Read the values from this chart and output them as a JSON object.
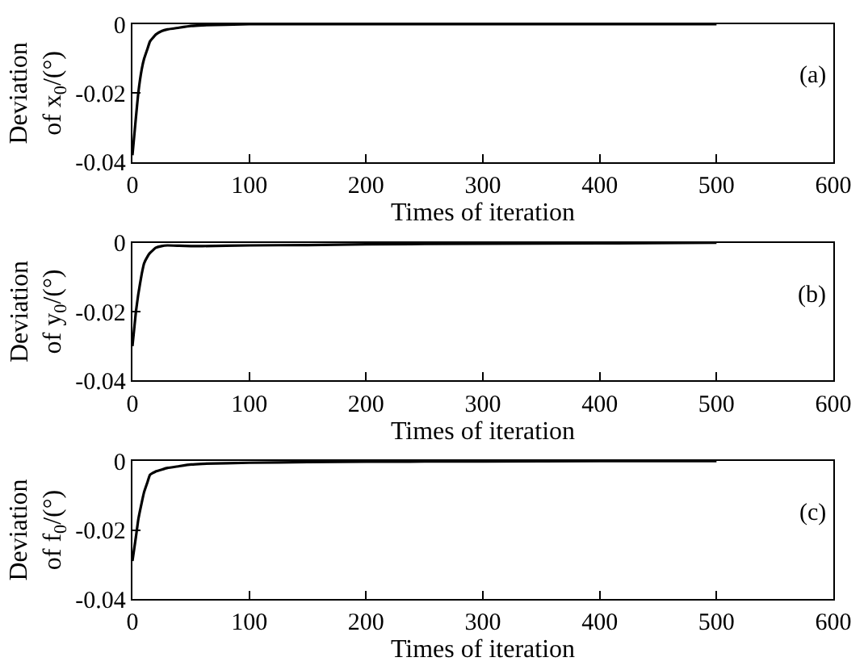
{
  "chart_data": [
    {
      "type": "line",
      "xlabel": "Times of iteration",
      "ylabel": "Deviation\nof x$_{0}$/(°)",
      "annotations": [
        "(a)"
      ],
      "xlim": [
        0,
        600
      ],
      "xticks": [
        0,
        100,
        200,
        300,
        400,
        500,
        600
      ],
      "ylim": [
        -0.04,
        0
      ],
      "yticks": [
        -0.04,
        -0.02,
        0
      ],
      "marker": "none",
      "line_style": "solid",
      "series": [
        {
          "color": "#000000",
          "x": [
            0,
            3,
            5,
            8,
            10,
            13,
            15,
            20,
            25,
            30,
            40,
            50,
            60,
            100,
            150,
            200,
            300,
            400,
            500
          ],
          "values": [
            -0.038,
            -0.027,
            -0.02,
            -0.013,
            -0.01,
            -0.007,
            -0.005,
            -0.003,
            -0.002,
            -0.0015,
            -0.001,
            -0.0005,
            -0.0003,
            0,
            0,
            0,
            0,
            0,
            0
          ]
        }
      ]
    },
    {
      "type": "line",
      "xlabel": "Times of iteration",
      "ylabel": "Deviation\nof y$_{0}$/(°)",
      "annotations": [
        "(b)"
      ],
      "xlim": [
        0,
        600
      ],
      "xticks": [
        0,
        100,
        200,
        300,
        400,
        500,
        600
      ],
      "ylim": [
        -0.04,
        0
      ],
      "yticks": [
        -0.04,
        -0.02,
        0
      ],
      "marker": "none",
      "line_style": "solid",
      "series": [
        {
          "color": "#000000",
          "x": [
            0,
            3,
            5,
            8,
            10,
            13,
            15,
            20,
            25,
            30,
            40,
            50,
            60,
            100,
            150,
            200,
            300,
            400,
            500
          ],
          "values": [
            -0.03,
            -0.02,
            -0.015,
            -0.009,
            -0.006,
            -0.004,
            -0.003,
            -0.0015,
            -0.001,
            -0.0008,
            -0.0009,
            -0.001,
            -0.001,
            -0.0008,
            -0.0007,
            -0.0005,
            -0.0003,
            -0.0002,
            0
          ]
        }
      ]
    },
    {
      "type": "line",
      "xlabel": "Times of iteration",
      "ylabel": "Deviation\nof f$_{0}$/(°)",
      "annotations": [
        "(c)"
      ],
      "xlim": [
        0,
        600
      ],
      "xticks": [
        0,
        100,
        200,
        300,
        400,
        500,
        600
      ],
      "ylim": [
        -0.04,
        0
      ],
      "yticks": [
        -0.04,
        -0.02,
        0
      ],
      "marker": "none",
      "line_style": "solid",
      "series": [
        {
          "color": "#000000",
          "x": [
            0,
            3,
            5,
            8,
            10,
            13,
            15,
            20,
            25,
            30,
            40,
            50,
            60,
            100,
            150,
            200,
            300,
            400,
            500
          ],
          "values": [
            -0.029,
            -0.022,
            -0.017,
            -0.012,
            -0.009,
            -0.006,
            -0.004,
            -0.003,
            -0.0025,
            -0.002,
            -0.0015,
            -0.001,
            -0.0008,
            -0.0005,
            -0.0003,
            -0.0002,
            -0.0001,
            0,
            0
          ]
        }
      ]
    }
  ]
}
